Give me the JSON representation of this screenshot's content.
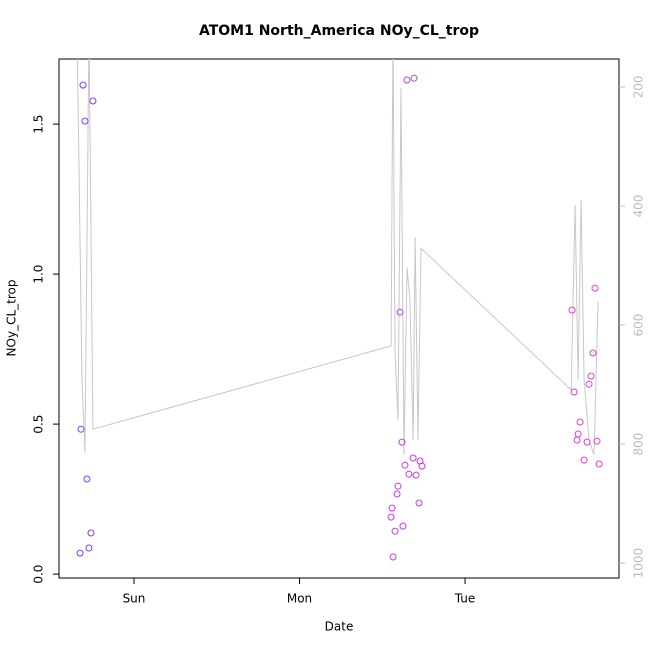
{
  "chart_data": {
    "type": "scatter",
    "title": "ATOM1 North_America NOy_CL_trop",
    "xlabel": "Date",
    "ylabel": "NOy_CL_trop",
    "x": [
      0.674,
      0.692,
      0.68,
      0.704,
      0.716,
      0.728,
      0.74,
      0.752,
      2.565,
      2.553,
      2.559,
      2.577,
      2.589,
      2.595,
      2.607,
      2.619,
      2.625,
      2.637,
      2.649,
      2.661,
      2.686,
      2.692,
      2.704,
      2.722,
      2.728,
      2.74,
      3.647,
      3.659,
      3.677,
      3.683,
      3.695,
      3.719,
      3.737,
      3.749,
      3.761,
      3.773,
      3.785,
      3.797,
      3.81
    ],
    "values": [
      0.07,
      1.63,
      0.483,
      1.51,
      0.317,
      0.087,
      0.137,
      1.577,
      0.057,
      0.19,
      0.22,
      0.143,
      0.267,
      0.293,
      0.873,
      0.44,
      0.16,
      0.363,
      1.647,
      0.333,
      0.387,
      1.653,
      0.33,
      0.237,
      0.377,
      0.36,
      0.88,
      0.607,
      0.447,
      0.467,
      0.507,
      0.38,
      0.44,
      0.633,
      0.66,
      0.737,
      0.953,
      0.443,
      0.367
    ],
    "colors": [
      "#7f3cf8",
      "#7f3cf8",
      "#7f3cf8",
      "#7f3cf8",
      "#7f3cf8",
      "#7f3cf8",
      "#7f3cf8",
      "#7f3cf8",
      "#c23ce8",
      "#c23ce8",
      "#c23ce8",
      "#c23ce8",
      "#c23ce8",
      "#c23ce8",
      "#c23ce8",
      "#c23ce8",
      "#c23ce8",
      "#c23ce8",
      "#c23ce8",
      "#c23ce8",
      "#c23ce8",
      "#c23ce8",
      "#c23ce8",
      "#c23ce8",
      "#c23ce8",
      "#c23ce8",
      "#e23cd8",
      "#e23cd8",
      "#e23cd8",
      "#e23cd8",
      "#e23cd8",
      "#e23cd8",
      "#e23cd8",
      "#e23cd8",
      "#e23cd8",
      "#e23cd8",
      "#e23cd8",
      "#e23cd8",
      "#e23cd8"
    ],
    "line": {
      "color": "#c8c8c8",
      "axis": "y2",
      "x": [
        0.656,
        0.686,
        0.704,
        0.728,
        0.752,
        2.553,
        2.565,
        2.577,
        2.595,
        2.613,
        2.631,
        2.649,
        2.667,
        2.686,
        2.698,
        2.716,
        2.734,
        3.641,
        3.665,
        3.683,
        3.701,
        3.719,
        3.749,
        3.779,
        3.804
      ],
      "values": [
        100,
        692,
        815,
        100,
        775,
        635,
        100,
        642,
        760,
        202,
        818,
        504,
        558,
        793,
        452,
        793,
        471,
        709,
        398,
        692,
        390,
        692,
        793,
        818,
        561
      ]
    },
    "xlim": [
      0.547,
      3.93
    ],
    "xticks": [
      {
        "value": 1,
        "label": "Sun"
      },
      {
        "value": 2,
        "label": "Mon"
      },
      {
        "value": 3,
        "label": "Tue"
      }
    ],
    "ylim": [
      -0.013,
      1.717
    ],
    "yticks": [
      {
        "value": 0,
        "label": "0.0"
      },
      0.5,
      {
        "value": 1,
        "label": "1.0"
      },
      1.5
    ],
    "y2lim": [
      1025,
      153
    ],
    "y2ticks": [
      200,
      400,
      600,
      800,
      1000
    ]
  }
}
